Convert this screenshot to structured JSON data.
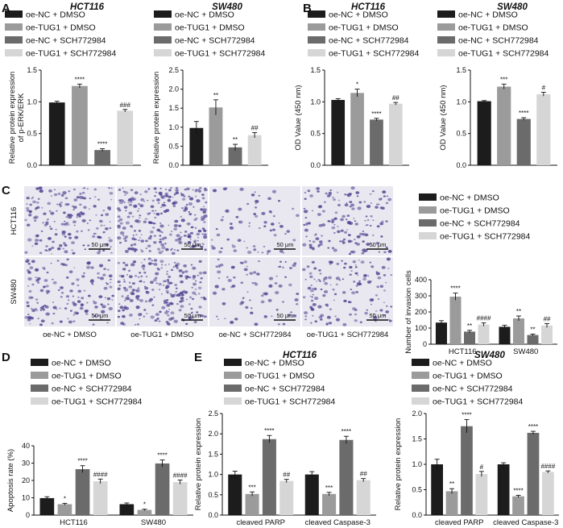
{
  "colors": {
    "series": [
      "#1c1c1c",
      "#9b9b9b",
      "#6b6b6b",
      "#d6d6d6"
    ],
    "micro_background": "#e9e7ef",
    "micro_cells": "#4b3f8f"
  },
  "legend_labels": [
    "oe-NC + DMSO",
    "oe-TUG1 + DMSO",
    "oe-NC + SCH772984",
    "oe-TUG1 + SCH772984"
  ],
  "panel_letters": [
    "A",
    "B",
    "C",
    "D",
    "E"
  ],
  "micrographs": {
    "row_labels": [
      "HCT116",
      "SW480"
    ],
    "column_labels": [
      "oe-NC + DMSO",
      "oe-TUG1 + DMSO",
      "oe-NC + SCH772984",
      "oe-TUG1 + SCH772984"
    ],
    "scale_bar": "50 μm",
    "density": [
      0.55,
      0.9,
      0.12,
      0.45,
      0.45,
      0.75,
      0.15,
      0.4
    ]
  },
  "chart_data": [
    {
      "id": "A1",
      "type": "bar",
      "title": "HCT116",
      "ylabel": [
        "Relative protein expression",
        "of p-ERK/ERK"
      ],
      "ylim": [
        0,
        1.5
      ],
      "yticks": [
        0,
        0.5,
        1.0,
        1.5
      ],
      "ytick_labels": [
        "0.0",
        "0.5",
        "1.0",
        "1.5"
      ],
      "values": [
        0.99,
        1.25,
        0.24,
        0.86
      ],
      "errors": [
        0.02,
        0.03,
        0.02,
        0.02
      ],
      "sig": [
        "",
        "****",
        "****",
        "###"
      ]
    },
    {
      "id": "A2",
      "type": "bar",
      "title": "SW480",
      "ylabel": [
        "Relative protein expression"
      ],
      "ylim": [
        0,
        2.5
      ],
      "yticks": [
        0,
        0.5,
        1.0,
        1.5,
        2.0,
        2.5
      ],
      "ytick_labels": [
        "0.0",
        "0.5",
        "1.0",
        "1.5",
        "2.0",
        "2.5"
      ],
      "values": [
        0.98,
        1.52,
        0.47,
        0.79
      ],
      "errors": [
        0.17,
        0.2,
        0.08,
        0.07
      ],
      "sig": [
        "",
        "**",
        "**",
        "##"
      ]
    },
    {
      "id": "B1",
      "type": "bar",
      "title": "HCT116",
      "ylabel": [
        "OD Value (450 nm)"
      ],
      "ylim": [
        0,
        1.5
      ],
      "yticks": [
        0,
        0.5,
        1.0,
        1.5
      ],
      "ytick_labels": [
        "0.0",
        "0.5",
        "1.0",
        "1.5"
      ],
      "values": [
        1.03,
        1.14,
        0.72,
        0.97
      ],
      "errors": [
        0.02,
        0.06,
        0.02,
        0.02
      ],
      "sig": [
        "",
        "*",
        "****",
        "##"
      ]
    },
    {
      "id": "B2",
      "type": "bar",
      "title": "SW480",
      "ylabel": [
        "OD Value (450 nm)"
      ],
      "ylim": [
        0,
        1.5
      ],
      "yticks": [
        0,
        0.5,
        1.0,
        1.5
      ],
      "ytick_labels": [
        "0.0",
        "0.5",
        "1.0",
        "1.5"
      ],
      "values": [
        1.01,
        1.24,
        0.73,
        1.12
      ],
      "errors": [
        0.01,
        0.04,
        0.02,
        0.03
      ],
      "sig": [
        "",
        "***",
        "****",
        "#"
      ]
    },
    {
      "id": "C",
      "type": "bar",
      "title": "",
      "ylabel": [
        "Number of invasion cells"
      ],
      "ylim": [
        0,
        400
      ],
      "yticks": [
        0,
        100,
        200,
        300,
        400
      ],
      "ytick_labels": [
        "0",
        "100",
        "200",
        "300",
        "400"
      ],
      "categories": [
        "HCT116",
        "SW480"
      ],
      "series_values": [
        [
          134,
          108
        ],
        [
          295,
          160
        ],
        [
          78,
          57
        ],
        [
          122,
          116
        ]
      ],
      "series_errors": [
        [
          12,
          10
        ],
        [
          22,
          15
        ],
        [
          8,
          6
        ],
        [
          10,
          12
        ]
      ],
      "series_sig": [
        [
          "",
          ""
        ],
        [
          "****",
          "**"
        ],
        [
          "**",
          "**"
        ],
        [
          "####",
          "##"
        ]
      ]
    },
    {
      "id": "D",
      "type": "bar",
      "title": "",
      "ylabel": [
        "Apoptosis rate (%)"
      ],
      "ylim": [
        0,
        40
      ],
      "yticks": [
        0,
        10,
        20,
        30,
        40
      ],
      "ytick_labels": [
        "0",
        "10",
        "20",
        "30",
        "40"
      ],
      "categories": [
        "HCT116",
        "SW480"
      ],
      "series_values": [
        [
          9.8,
          6.3
        ],
        [
          6.3,
          3.0
        ],
        [
          26.5,
          29.8
        ],
        [
          19.5,
          19.0
        ]
      ],
      "series_errors": [
        [
          0.8,
          0.7
        ],
        [
          0.5,
          0.4
        ],
        [
          2.0,
          2.0
        ],
        [
          1.3,
          1.2
        ]
      ],
      "series_sig": [
        [
          "",
          ""
        ],
        [
          "*",
          "*"
        ],
        [
          "****",
          "****"
        ],
        [
          "####",
          "####"
        ]
      ]
    },
    {
      "id": "E1",
      "type": "bar",
      "title": "HCT116",
      "ylabel": [
        "Relative protein expression"
      ],
      "ylim": [
        0,
        2.5
      ],
      "yticks": [
        0,
        0.5,
        1.0,
        1.5,
        2.0,
        2.5
      ],
      "ytick_labels": [
        "0.0",
        "0.5",
        "1.0",
        "1.5",
        "2.0",
        "2.5"
      ],
      "categories": [
        "cleaved PARP",
        "cleaved Caspase-3"
      ],
      "series_values": [
        [
          1.0,
          1.0
        ],
        [
          0.52,
          0.52
        ],
        [
          1.87,
          1.85
        ],
        [
          0.84,
          0.86
        ]
      ],
      "series_errors": [
        [
          0.08,
          0.07
        ],
        [
          0.05,
          0.04
        ],
        [
          0.09,
          0.09
        ],
        [
          0.04,
          0.04
        ]
      ],
      "series_sig": [
        [
          "",
          ""
        ],
        [
          "***",
          "***"
        ],
        [
          "****",
          "****"
        ],
        [
          "##",
          "##"
        ]
      ]
    },
    {
      "id": "E2",
      "type": "bar",
      "title": "SW480",
      "ylabel": [
        "Relative protein expression"
      ],
      "ylim": [
        0,
        2.0
      ],
      "yticks": [
        0,
        0.5,
        1.0,
        1.5,
        2.0
      ],
      "ytick_labels": [
        "0.0",
        "0.5",
        "1.0",
        "1.5",
        "2.0"
      ],
      "categories": [
        "cleaved PARP",
        "cleaved Caspase-3"
      ],
      "series_values": [
        [
          1.0,
          1.0
        ],
        [
          0.47,
          0.37
        ],
        [
          1.75,
          1.62
        ],
        [
          0.81,
          0.85
        ]
      ],
      "series_errors": [
        [
          0.1,
          0.03
        ],
        [
          0.05,
          0.02
        ],
        [
          0.13,
          0.03
        ],
        [
          0.05,
          0.02
        ]
      ],
      "series_sig": [
        [
          "",
          ""
        ],
        [
          "**",
          "****"
        ],
        [
          "****",
          "****"
        ],
        [
          "#",
          "####"
        ]
      ]
    }
  ]
}
